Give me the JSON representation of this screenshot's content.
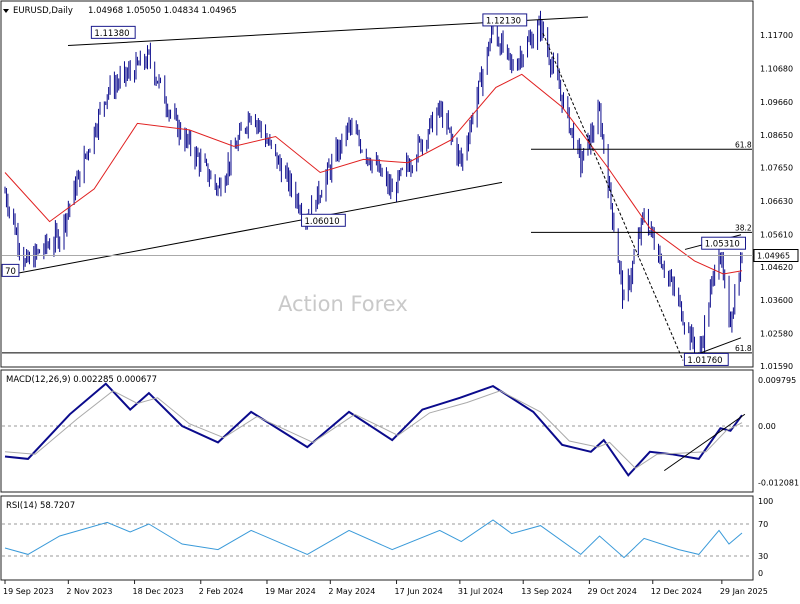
{
  "window": {
    "symbol": "EURUSD,Daily",
    "ohlc": "1.04968 1.05050 1.04834 1.04965",
    "watermark": "Action Forex"
  },
  "colors": {
    "candle": "#0b0b8c",
    "ma": "#e02020",
    "macd": "#0b0b8c",
    "signal": "#aaaaaa",
    "rsi": "#3a9ad9",
    "grid": "#999999"
  },
  "chart_data": [
    {
      "type": "candlestick",
      "title": "EURUSD,Daily",
      "ylim": [
        1.0159,
        1.1225
      ],
      "y_ticks": [
        "1.11700",
        "1.10680",
        "1.09660",
        "1.08650",
        "1.07650",
        "1.06630",
        "1.05610",
        "1.04620",
        "1.03600",
        "1.02580",
        "1.01590"
      ],
      "x_ticks": [
        "19 Sep 2023",
        "2 Nov 2023",
        "18 Dec 2023",
        "2 Feb 2024",
        "19 Mar 2024",
        "2 May 2024",
        "17 Jun 2024",
        "31 Jul 2024",
        "13 Sep 2024",
        "29 Oct 2024",
        "12 Dec 2024",
        "29 Jan 2025"
      ],
      "last_price": "1.04965",
      "anchors": [
        {
          "date": "2023-09-19",
          "close": 1.069
        },
        {
          "date": "2023-10-03",
          "close": 1.047
        },
        {
          "date": "2023-10-27",
          "close": 1.056
        },
        {
          "date": "2023-11-29",
          "close": 1.1
        },
        {
          "date": "2023-12-28",
          "close": 1.11
        },
        {
          "date": "2024-01-15",
          "close": 1.09
        },
        {
          "date": "2024-02-14",
          "close": 1.07
        },
        {
          "date": "2024-03-08",
          "close": 1.094
        },
        {
          "date": "2024-04-16",
          "close": 1.061
        },
        {
          "date": "2024-05-15",
          "close": 1.089
        },
        {
          "date": "2024-06-14",
          "close": 1.069
        },
        {
          "date": "2024-07-17",
          "close": 1.094
        },
        {
          "date": "2024-08-01",
          "close": 1.078
        },
        {
          "date": "2024-08-23",
          "close": 1.119
        },
        {
          "date": "2024-09-05",
          "close": 1.107
        },
        {
          "date": "2024-09-25",
          "close": 1.12
        },
        {
          "date": "2024-10-23",
          "close": 1.078
        },
        {
          "date": "2024-11-05",
          "close": 1.093
        },
        {
          "date": "2024-11-22",
          "close": 1.035
        },
        {
          "date": "2024-12-06",
          "close": 1.062
        },
        {
          "date": "2024-12-30",
          "close": 1.035
        },
        {
          "date": "2025-01-13",
          "close": 1.018
        },
        {
          "date": "2025-01-27",
          "close": 1.053
        },
        {
          "date": "2025-02-03",
          "close": 1.028
        },
        {
          "date": "2025-02-12",
          "close": 1.0497
        }
      ],
      "moving_average": [
        {
          "date": "2023-09-19",
          "value": 1.075
        },
        {
          "date": "2023-10-20",
          "value": 1.06
        },
        {
          "date": "2023-11-20",
          "value": 1.07
        },
        {
          "date": "2023-12-20",
          "value": 1.09
        },
        {
          "date": "2024-01-25",
          "value": 1.088
        },
        {
          "date": "2024-02-25",
          "value": 1.083
        },
        {
          "date": "2024-03-25",
          "value": 1.086
        },
        {
          "date": "2024-04-25",
          "value": 1.075
        },
        {
          "date": "2024-05-25",
          "value": 1.079
        },
        {
          "date": "2024-06-25",
          "value": 1.078
        },
        {
          "date": "2024-07-25",
          "value": 1.085
        },
        {
          "date": "2024-08-25",
          "value": 1.101
        },
        {
          "date": "2024-09-12",
          "value": 1.105
        },
        {
          "date": "2024-10-10",
          "value": 1.095
        },
        {
          "date": "2024-11-10",
          "value": 1.077
        },
        {
          "date": "2024-12-10",
          "value": 1.058
        },
        {
          "date": "2025-01-10",
          "value": 1.048
        },
        {
          "date": "2025-01-30",
          "value": 1.044
        },
        {
          "date": "2025-02-12",
          "value": 1.045
        }
      ],
      "labels": [
        {
          "text": "1.11380",
          "date": "2023-11-18",
          "price": 1.1175
        },
        {
          "text": "1.12130",
          "date": "2024-08-16",
          "price": 1.1213
        },
        {
          "text": "1.06010",
          "date": "2024-04-12",
          "price": 1.0601
        },
        {
          "text": "1.05310",
          "date": "2025-01-15",
          "price": 1.0531
        },
        {
          "text": "1.01760",
          "date": "2025-01-03",
          "price": 1.0176
        },
        {
          "text": "70",
          "date": "2023-09-17",
          "price": 1.0448
        }
      ],
      "levels": [
        {
          "text": "61.8",
          "price": 1.0821
        },
        {
          "text": "38.2",
          "price": 1.0567
        },
        {
          "text": "61.8",
          "price": 1.0199
        }
      ]
    },
    {
      "type": "line",
      "title": "MACD(12,26,9) 0.002285 0.000677",
      "ylim": [
        -0.012081,
        0.009795
      ],
      "y_ticks": [
        "0.009795",
        "0.00",
        "-0.012081"
      ],
      "series": [
        {
          "name": "MACD",
          "points": [
            {
              "date": "2023-09-19",
              "value": -0.0065
            },
            {
              "date": "2023-10-05",
              "value": -0.007
            },
            {
              "date": "2023-11-03",
              "value": 0.0025
            },
            {
              "date": "2023-11-28",
              "value": 0.009
            },
            {
              "date": "2023-12-15",
              "value": 0.0035
            },
            {
              "date": "2023-12-28",
              "value": 0.007
            },
            {
              "date": "2024-01-20",
              "value": 0.0
            },
            {
              "date": "2024-02-14",
              "value": -0.0035
            },
            {
              "date": "2024-03-08",
              "value": 0.003
            },
            {
              "date": "2024-04-16",
              "value": -0.0045
            },
            {
              "date": "2024-05-15",
              "value": 0.003
            },
            {
              "date": "2024-06-14",
              "value": -0.003
            },
            {
              "date": "2024-07-05",
              "value": 0.0035
            },
            {
              "date": "2024-07-31",
              "value": 0.006
            },
            {
              "date": "2024-08-23",
              "value": 0.0085
            },
            {
              "date": "2024-09-20",
              "value": 0.003
            },
            {
              "date": "2024-10-10",
              "value": -0.004
            },
            {
              "date": "2024-10-30",
              "value": -0.0055
            },
            {
              "date": "2024-11-08",
              "value": -0.003
            },
            {
              "date": "2024-11-25",
              "value": -0.0105
            },
            {
              "date": "2024-12-10",
              "value": -0.0055
            },
            {
              "date": "2024-12-25",
              "value": -0.006
            },
            {
              "date": "2025-01-13",
              "value": -0.007
            },
            {
              "date": "2025-01-28",
              "value": -0.0005
            },
            {
              "date": "2025-02-04",
              "value": -0.001
            },
            {
              "date": "2025-02-12",
              "value": 0.0023
            }
          ]
        },
        {
          "name": "Signal",
          "points": [
            {
              "date": "2023-09-19",
              "value": -0.0055
            },
            {
              "date": "2023-10-10",
              "value": -0.006
            },
            {
              "date": "2023-11-08",
              "value": 0.0015
            },
            {
              "date": "2023-12-03",
              "value": 0.0075
            },
            {
              "date": "2023-12-20",
              "value": 0.0048
            },
            {
              "date": "2024-01-03",
              "value": 0.006
            },
            {
              "date": "2024-01-25",
              "value": 0.0005
            },
            {
              "date": "2024-02-18",
              "value": -0.0025
            },
            {
              "date": "2024-03-12",
              "value": 0.002
            },
            {
              "date": "2024-04-20",
              "value": -0.0035
            },
            {
              "date": "2024-05-19",
              "value": 0.0025
            },
            {
              "date": "2024-06-18",
              "value": -0.002
            },
            {
              "date": "2024-07-10",
              "value": 0.0028
            },
            {
              "date": "2024-08-05",
              "value": 0.005
            },
            {
              "date": "2024-08-28",
              "value": 0.0075
            },
            {
              "date": "2024-09-25",
              "value": 0.003
            },
            {
              "date": "2024-10-15",
              "value": -0.0032
            },
            {
              "date": "2024-11-04",
              "value": -0.0045
            },
            {
              "date": "2024-11-12",
              "value": -0.0035
            },
            {
              "date": "2024-11-30",
              "value": -0.009
            },
            {
              "date": "2024-12-15",
              "value": -0.006
            },
            {
              "date": "2024-12-30",
              "value": -0.0058
            },
            {
              "date": "2025-01-18",
              "value": -0.0055
            },
            {
              "date": "2025-02-01",
              "value": -0.001
            },
            {
              "date": "2025-02-12",
              "value": 0.0007
            }
          ]
        }
      ],
      "trendline": [
        {
          "date": "2024-12-20",
          "value": -0.0095
        },
        {
          "date": "2025-02-14",
          "value": 0.0025
        }
      ]
    },
    {
      "type": "line",
      "title": "RSI(14) 58.7207",
      "ylim": [
        0,
        100
      ],
      "y_ticks": [
        "100",
        "70",
        "30",
        "0"
      ],
      "levels": [
        70,
        30
      ],
      "series": [
        {
          "name": "RSI",
          "points": [
            {
              "date": "2023-09-19",
              "value": 40
            },
            {
              "date": "2023-10-05",
              "value": 32
            },
            {
              "date": "2023-10-27",
              "value": 55
            },
            {
              "date": "2023-11-29",
              "value": 72
            },
            {
              "date": "2023-12-15",
              "value": 60
            },
            {
              "date": "2023-12-28",
              "value": 70
            },
            {
              "date": "2024-01-20",
              "value": 45
            },
            {
              "date": "2024-02-14",
              "value": 38
            },
            {
              "date": "2024-03-08",
              "value": 62
            },
            {
              "date": "2024-04-16",
              "value": 32
            },
            {
              "date": "2024-05-15",
              "value": 62
            },
            {
              "date": "2024-06-14",
              "value": 38
            },
            {
              "date": "2024-07-17",
              "value": 62
            },
            {
              "date": "2024-08-01",
              "value": 48
            },
            {
              "date": "2024-08-23",
              "value": 75
            },
            {
              "date": "2024-09-05",
              "value": 58
            },
            {
              "date": "2024-09-25",
              "value": 68
            },
            {
              "date": "2024-10-23",
              "value": 32
            },
            {
              "date": "2024-11-05",
              "value": 55
            },
            {
              "date": "2024-11-22",
              "value": 28
            },
            {
              "date": "2024-12-06",
              "value": 52
            },
            {
              "date": "2024-12-30",
              "value": 38
            },
            {
              "date": "2025-01-13",
              "value": 32
            },
            {
              "date": "2025-01-27",
              "value": 62
            },
            {
              "date": "2025-02-03",
              "value": 45
            },
            {
              "date": "2025-02-12",
              "value": 58.72
            }
          ]
        }
      ]
    }
  ]
}
